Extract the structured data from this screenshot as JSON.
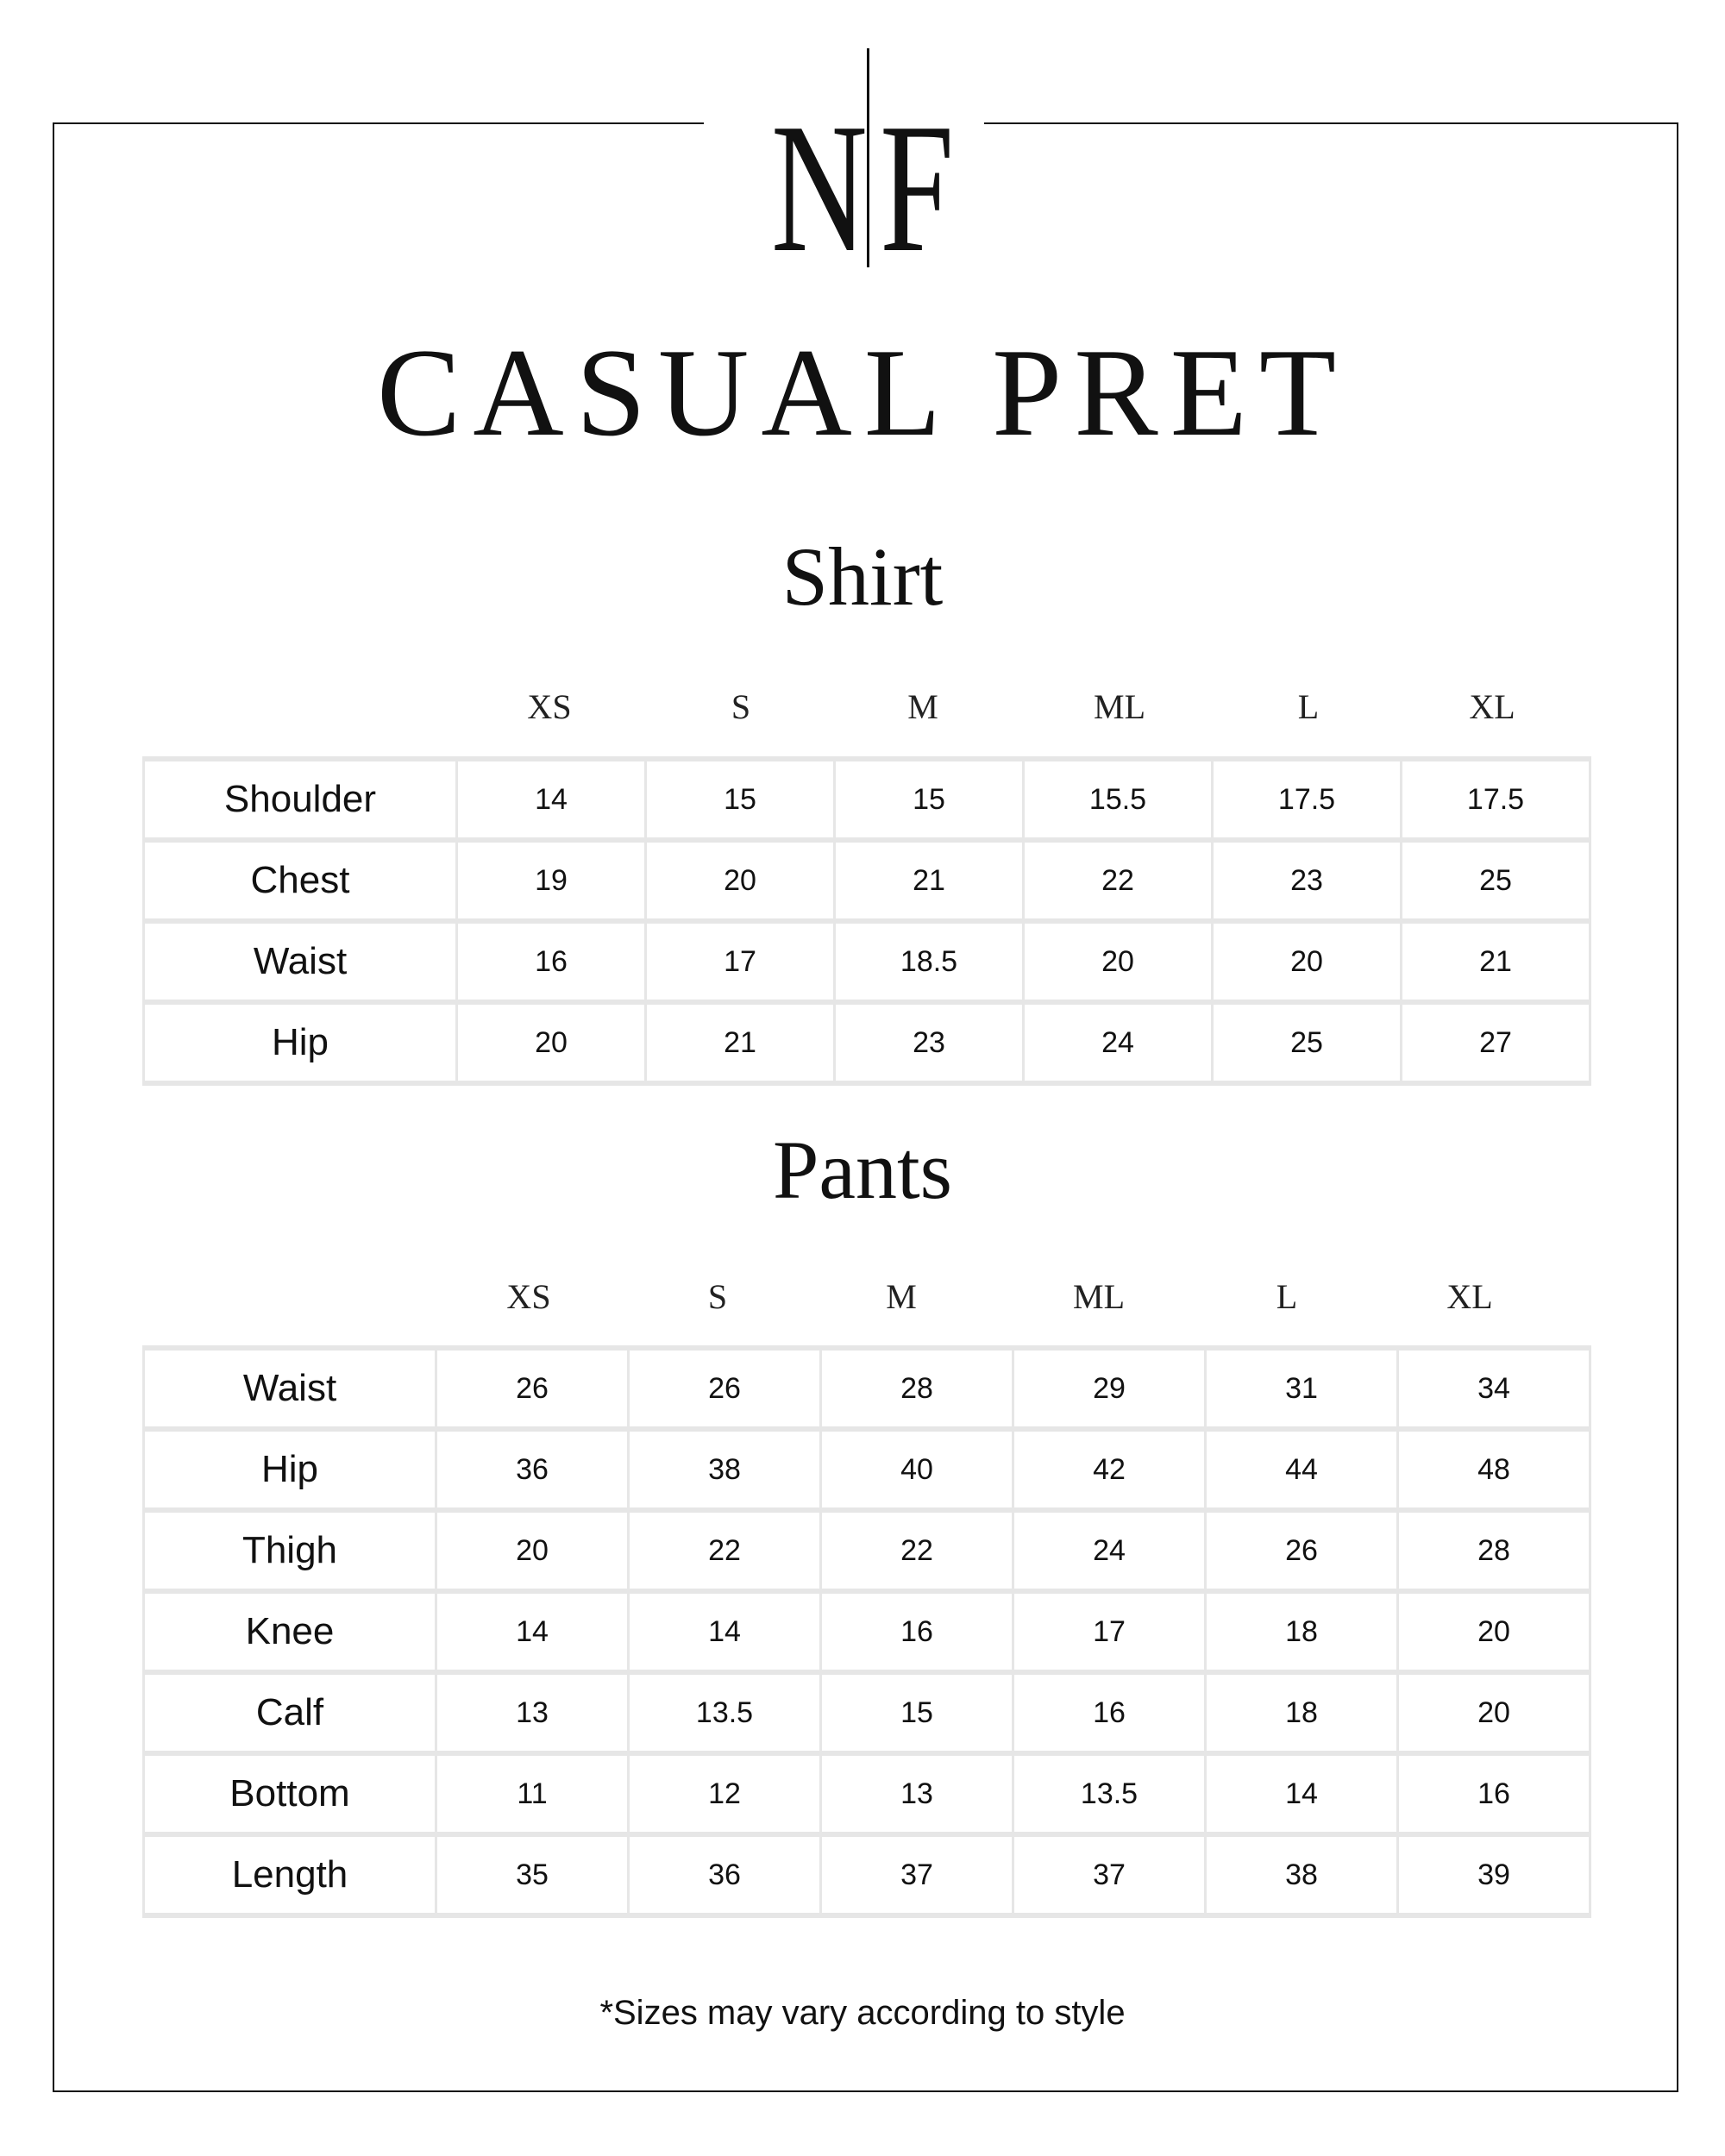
{
  "logo": {
    "left": "N",
    "right": "F"
  },
  "title": "CASUAL PRET",
  "sizes": [
    "XS",
    "S",
    "M",
    "ML",
    "L",
    "XL"
  ],
  "shirt": {
    "title": "Shirt",
    "rows": [
      {
        "label": "Shoulder",
        "values": [
          "14",
          "15",
          "15",
          "15.5",
          "17.5",
          "17.5"
        ]
      },
      {
        "label": "Chest",
        "values": [
          "19",
          "20",
          "21",
          "22",
          "23",
          "25"
        ]
      },
      {
        "label": "Waist",
        "values": [
          "16",
          "17",
          "18.5",
          "20",
          "20",
          "21"
        ]
      },
      {
        "label": "Hip",
        "values": [
          "20",
          "21",
          "23",
          "24",
          "25",
          "27"
        ]
      }
    ]
  },
  "pants": {
    "title": "Pants",
    "rows": [
      {
        "label": "Waist",
        "values": [
          "26",
          "26",
          "28",
          "29",
          "31",
          "34"
        ]
      },
      {
        "label": "Hip",
        "values": [
          "36",
          "38",
          "40",
          "42",
          "44",
          "48"
        ]
      },
      {
        "label": "Thigh",
        "values": [
          "20",
          "22",
          "22",
          "24",
          "26",
          "28"
        ]
      },
      {
        "label": "Knee",
        "values": [
          "14",
          "14",
          "16",
          "17",
          "18",
          "20"
        ]
      },
      {
        "label": "Calf",
        "values": [
          "13",
          "13.5",
          "15",
          "16",
          "18",
          "20"
        ]
      },
      {
        "label": "Bottom",
        "values": [
          "11",
          "12",
          "13",
          "13.5",
          "14",
          "16"
        ]
      },
      {
        "label": "Length",
        "values": [
          "35",
          "36",
          "37",
          "37",
          "38",
          "39"
        ]
      }
    ]
  },
  "note": "*Sizes may vary according to style"
}
